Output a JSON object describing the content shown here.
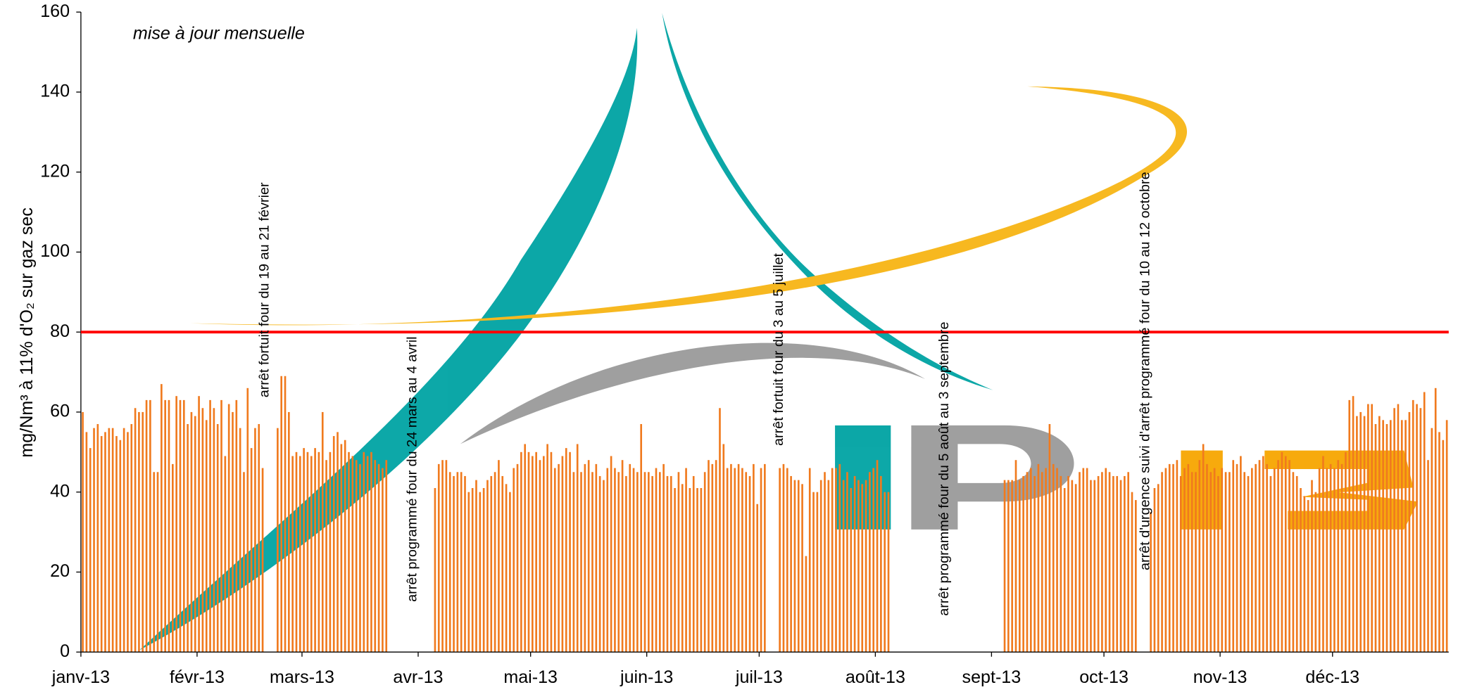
{
  "chart_data": {
    "type": "bar",
    "subtitle": "mise à jour mensuelle",
    "y_label": "mg/Nm³ à 11% d'O₂ sur gaz sec",
    "color": "#f07a1e",
    "ylim": [
      0,
      160
    ],
    "yticks": [
      0,
      20,
      40,
      60,
      80,
      100,
      120,
      140,
      160
    ],
    "hlines": [
      {
        "value": 80,
        "color": "#ff0000"
      }
    ],
    "annotations": [
      "arrêt fortuit four du 19 au 21 février",
      "arrêt programmé four du 24 mars au 4 avril",
      "arrêt fortuit four du 3 au 5 juillet",
      "arrêt programmé four du 5 août au 3 septembre",
      "arrêt d'urgence suivi d'arrêt programmé four du 10 au 12 octobre"
    ],
    "month_lengths": [
      31,
      28,
      31,
      30,
      31,
      30,
      31,
      31,
      30,
      31,
      30,
      31
    ],
    "month_labels": [
      "janv-13",
      "févr-13",
      "mars-13",
      "avr-13",
      "mai-13",
      "juin-13",
      "juil-13",
      "août-13",
      "sept-13",
      "oct-13",
      "nov-13",
      "déc-13"
    ],
    "values": [
      60,
      55,
      51,
      56,
      57,
      54,
      55,
      56,
      56,
      54,
      53,
      56,
      55,
      57,
      61,
      60,
      60,
      63,
      63,
      45,
      45,
      67,
      63,
      63,
      47,
      64,
      63,
      63,
      57,
      60,
      59,
      64,
      61,
      58,
      63,
      61,
      57,
      63,
      49,
      62,
      60,
      63,
      56,
      45,
      66,
      51,
      56,
      57,
      46,
      null,
      null,
      null,
      56,
      69,
      69,
      60,
      49,
      50,
      49,
      51,
      50,
      49,
      51,
      50,
      60,
      48,
      50,
      54,
      55,
      52,
      53,
      50,
      49,
      48,
      47,
      50,
      49,
      50,
      48,
      47,
      46,
      48,
      null,
      null,
      null,
      null,
      null,
      null,
      null,
      null,
      null,
      null,
      null,
      null,
      41,
      47,
      48,
      48,
      45,
      44,
      45,
      45,
      44,
      40,
      41,
      43,
      40,
      41,
      43,
      44,
      45,
      48,
      44,
      42,
      40,
      46,
      47,
      50,
      52,
      50,
      49,
      50,
      48,
      49,
      52,
      50,
      46,
      47,
      49,
      51,
      50,
      45,
      52,
      45,
      47,
      48,
      45,
      47,
      44,
      43,
      46,
      49,
      46,
      45,
      48,
      44,
      47,
      46,
      45,
      57,
      45,
      45,
      44,
      46,
      45,
      47,
      44,
      44,
      41,
      45,
      42,
      46,
      41,
      44,
      41,
      41,
      45,
      48,
      47,
      48,
      61,
      52,
      46,
      47,
      46,
      47,
      46,
      45,
      44,
      47,
      37,
      46,
      47,
      null,
      null,
      null,
      46,
      47,
      46,
      44,
      43,
      43,
      42,
      24,
      46,
      40,
      40,
      43,
      45,
      43,
      46,
      46,
      47,
      43,
      45,
      41,
      44,
      43,
      42,
      43,
      45,
      46,
      48,
      44,
      40,
      40,
      null,
      null,
      null,
      null,
      null,
      null,
      null,
      null,
      null,
      null,
      null,
      null,
      null,
      null,
      null,
      null,
      null,
      null,
      null,
      null,
      null,
      null,
      null,
      null,
      null,
      null,
      null,
      null,
      null,
      null,
      43,
      43,
      43,
      48,
      43,
      44,
      45,
      46,
      44,
      47,
      45,
      46,
      57,
      47,
      46,
      44,
      41,
      44,
      43,
      42,
      45,
      46,
      46,
      43,
      43,
      44,
      45,
      46,
      45,
      44,
      44,
      43,
      44,
      45,
      40,
      38,
      null,
      null,
      null,
      35,
      41,
      42,
      45,
      46,
      47,
      47,
      48,
      44,
      46,
      47,
      45,
      45,
      48,
      52,
      47,
      45,
      46,
      44,
      46,
      45,
      45,
      48,
      47,
      49,
      45,
      44,
      46,
      47,
      48,
      49,
      47,
      44,
      46,
      48,
      50,
      49,
      48,
      45,
      44,
      41,
      39,
      38,
      43,
      40,
      46,
      49,
      46,
      47,
      46,
      48,
      47,
      50,
      63,
      64,
      59,
      60,
      59,
      62,
      62,
      57,
      59,
      58,
      57,
      58,
      61,
      62,
      58,
      58,
      60,
      63,
      62,
      61,
      65,
      48,
      56,
      66,
      55,
      53,
      58
    ]
  }
}
